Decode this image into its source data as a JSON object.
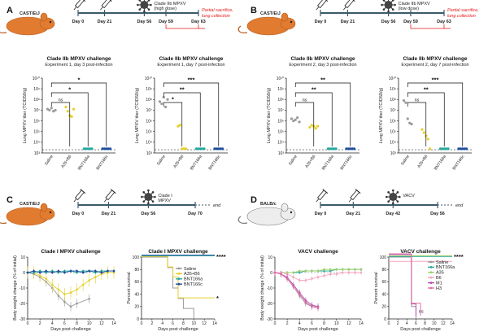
{
  "colors": {
    "Saline": "#9a9a9a",
    "A35+B6": "#e6cf2a",
    "BNT166a": "#25a89c",
    "BNT166c": "#1f4e9c",
    "A35": "#9ed06a",
    "B6": "#f6a6c0",
    "M1": "#b24fb3",
    "H3": "#e06fa2",
    "mouse_orange": "#e07b30",
    "mouse_white": "#ededed",
    "timeline": "#3c5a6b",
    "red": "#e31a1c"
  },
  "panels": [
    {
      "letter": "A",
      "mouse": "CAST/EiJ",
      "mouse_color": "orange",
      "days": [
        "Day 0",
        "Day 21",
        "Day 56",
        "Day 59",
        "Day 63"
      ],
      "challenge_label": [
        "Clade IIb MPXV",
        "(high dose)"
      ],
      "end_label": [
        "Partial sacrifice,",
        "lung collection"
      ],
      "end_is_red": true
    },
    {
      "letter": "B",
      "mouse": "CAST/EiJ",
      "mouse_color": "orange",
      "days": [
        "Day 0",
        "Day 21",
        "Day 56",
        "Day 59",
        "Day 63"
      ],
      "challenge_label": [
        "Clade IIb MPXV",
        "(low dose)"
      ],
      "end_label": [
        "Partial sacrifice,",
        "lung collection"
      ],
      "end_is_red": true
    },
    {
      "letter": "C",
      "mouse": "CAST/EiJ",
      "mouse_color": "orange",
      "days": [
        "Day 0",
        "Day 21",
        "Day 56",
        "Day 70"
      ],
      "challenge_label": [
        "Clade I",
        "MPXV"
      ],
      "end_label": [
        "end"
      ],
      "end_is_red": false
    },
    {
      "letter": "D",
      "mouse": "BALB/c",
      "mouse_color": "white",
      "days": [
        "Day 0",
        "Day 21",
        "Day 42",
        "Day 56"
      ],
      "challenge_label": [
        "VACV"
      ],
      "end_label": [
        "end"
      ],
      "end_is_red": false
    }
  ],
  "chart_data": [
    {
      "id": "A1",
      "type": "scatter",
      "title": "Clade IIb MPXV challenge",
      "subtitle": "Experiment 1, day 3 post-infection",
      "ylabel": "Lung MPXV titer (TCID50/g)",
      "ylim_log10": [
        3,
        10
      ],
      "yticks": [
        "10³",
        "10⁴",
        "10⁵",
        "10⁶",
        "10⁷",
        "10⁸",
        "10⁹",
        "10¹⁰"
      ],
      "categories": [
        "Saline",
        "A35+B6",
        "BNT166a",
        "BNT166c"
      ],
      "lod_log10": 3.3,
      "points_log10": [
        [
          7.1,
          7.0,
          7.2,
          6.9,
          7.0
        ],
        [
          7.3,
          6.9,
          6.5,
          6.4,
          7.1
        ],
        [
          3.3,
          3.3,
          3.3,
          3.3,
          3.3
        ],
        [
          3.3,
          3.3,
          3.3,
          3.3,
          3.3
        ]
      ],
      "brackets": [
        {
          "to": 1,
          "label": "ns"
        },
        {
          "to": 2,
          "label": "*"
        },
        {
          "to": 3,
          "label": "*"
        }
      ]
    },
    {
      "id": "A2",
      "type": "scatter",
      "title": "Clade IIb MPXV challenge",
      "subtitle": "Experiment 1, day 7 post-infection",
      "ylabel": "Lung MPXV titer (TCID50/g)",
      "ylim_log10": [
        3,
        10
      ],
      "yticks": [
        "10³",
        "10⁴",
        "10⁵",
        "10⁶",
        "10⁷",
        "10⁸",
        "10⁹",
        "10¹⁰"
      ],
      "categories": [
        "Saline",
        "A35+B6",
        "BNT166a",
        "BNT166c"
      ],
      "lod_log10": 3.3,
      "points_log10": [
        [
          7.8,
          7.6,
          8.2,
          7.3,
          8.0
        ],
        [
          5.5,
          5.6,
          3.3,
          3.3,
          3.3
        ],
        [
          3.3,
          3.3,
          3.3,
          3.3,
          3.3
        ],
        [
          3.3,
          3.3,
          3.3,
          3.3,
          3.3
        ]
      ],
      "brackets": [
        {
          "to": 1,
          "label": "*"
        },
        {
          "to": 2,
          "label": "**"
        },
        {
          "to": 3,
          "label": "***"
        }
      ]
    },
    {
      "id": "B1",
      "type": "scatter",
      "title": "Clade IIb MPXV challenge",
      "subtitle": "Experiment 2, day 3 post-infection",
      "ylabel": "Lung MPXV titer (TCID50/g)",
      "ylim_log10": [
        3,
        10
      ],
      "yticks": [
        "10³",
        "10⁴",
        "10⁵",
        "10⁶",
        "10⁷",
        "10⁸",
        "10⁹",
        "10¹⁰"
      ],
      "categories": [
        "Saline",
        "A35+B6",
        "BNT166a",
        "BNT166c"
      ],
      "lod_log10": 3.3,
      "points_log10": [
        [
          6.2,
          6.0,
          6.1,
          6.3,
          5.9
        ],
        [
          5.4,
          5.6,
          5.5,
          5.3,
          5.5
        ],
        [
          3.3,
          3.3,
          3.3,
          3.3,
          3.3
        ],
        [
          3.3,
          3.3,
          3.3,
          3.3,
          3.3
        ]
      ],
      "brackets": [
        {
          "to": 1,
          "label": "ns"
        },
        {
          "to": 2,
          "label": "**"
        },
        {
          "to": 3,
          "label": "**"
        }
      ]
    },
    {
      "id": "B2",
      "type": "scatter",
      "title": "Clade IIb MPXV challenge",
      "subtitle": "Experiment 2, day 7 post-infection",
      "ylabel": "Lung MPXV titer (TCID50/g)",
      "ylim_log10": [
        3,
        10
      ],
      "yticks": [
        "10³",
        "10⁴",
        "10⁵",
        "10⁶",
        "10⁷",
        "10⁸",
        "10⁹",
        "10¹⁰"
      ],
      "categories": [
        "Saline",
        "A35+B6",
        "BNT166a",
        "BNT166c"
      ],
      "lod_log10": 3.3,
      "points_log10": [
        [
          7.9,
          7.7,
          6.2,
          5.8,
          5.7
        ],
        [
          5.2,
          4.9,
          4.6,
          4.3,
          3.3
        ],
        [
          3.3,
          3.3,
          3.3,
          3.3,
          3.3
        ],
        [
          3.3,
          3.3,
          3.3,
          3.3,
          3.3
        ]
      ],
      "brackets": [
        {
          "to": 1,
          "label": "ns"
        },
        {
          "to": 2,
          "label": "**"
        },
        {
          "to": 3,
          "label": "***"
        }
      ]
    },
    {
      "id": "C1",
      "type": "line",
      "title": "Clade I MPXV challenge",
      "xlabel": "Days post challenge",
      "ylabel": "Body weight change (% of initial)",
      "xlim": [
        0,
        14
      ],
      "ylim": [
        -30,
        10
      ],
      "xticks": [
        0,
        2,
        4,
        6,
        8,
        10,
        12,
        14
      ],
      "yticks": [
        -30,
        -20,
        -10,
        0,
        10
      ],
      "series": [
        {
          "name": "Saline",
          "x": [
            0,
            1,
            2,
            3,
            4,
            5,
            6,
            7,
            8,
            10
          ],
          "y": [
            0,
            -1,
            -3,
            -6,
            -10,
            -15,
            -19,
            -22,
            -20,
            -17
          ],
          "err": 3
        },
        {
          "name": "A35+B6",
          "x": [
            0,
            1,
            2,
            3,
            4,
            5,
            6,
            7,
            8,
            9,
            10,
            11,
            12,
            13,
            14
          ],
          "y": [
            0,
            0,
            -2,
            -4,
            -8,
            -11,
            -14,
            -13,
            -11,
            -8,
            -5,
            -3,
            -1,
            0,
            0
          ],
          "err": 4
        },
        {
          "name": "BNT166a",
          "x": [
            0,
            1,
            2,
            3,
            4,
            5,
            6,
            7,
            8,
            9,
            10,
            11,
            12,
            13,
            14
          ],
          "y": [
            0,
            0,
            1,
            0,
            1,
            0,
            1,
            1,
            0,
            1,
            1,
            0,
            1,
            1,
            1
          ],
          "err": 1
        },
        {
          "name": "BNT166c",
          "x": [
            0,
            1,
            2,
            3,
            4,
            5,
            6,
            7,
            8,
            9,
            10,
            11,
            12,
            13,
            14
          ],
          "y": [
            0,
            1,
            0,
            1,
            0,
            1,
            0,
            1,
            1,
            0,
            1,
            1,
            0,
            1,
            1
          ],
          "err": 1
        }
      ]
    },
    {
      "id": "C2",
      "type": "line",
      "step": true,
      "title": "Clade I MPXV challenge",
      "xlabel": "Days post challenge",
      "ylabel": "Percent survival",
      "xlim": [
        0,
        14
      ],
      "ylim": [
        0,
        100
      ],
      "xticks": [
        0,
        2,
        4,
        6,
        8,
        10,
        12,
        14
      ],
      "yticks": [
        0,
        20,
        40,
        60,
        80,
        100
      ],
      "series": [
        {
          "name": "Saline",
          "x": [
            0,
            5,
            6,
            7,
            8,
            10
          ],
          "y": [
            100,
            83,
            50,
            33,
            17,
            0
          ]
        },
        {
          "name": "A35+B6",
          "x": [
            0,
            5,
            6,
            7,
            14
          ],
          "y": [
            100,
            83,
            67,
            33,
            33
          ]
        },
        {
          "name": "BNT166a",
          "x": [
            0,
            14
          ],
          "y": [
            100,
            100
          ]
        },
        {
          "name": "BNT166c",
          "x": [
            0,
            14
          ],
          "y": [
            100,
            100
          ]
        }
      ],
      "annotations": [
        "****",
        "*"
      ],
      "legend": [
        "Saline",
        "A35+B6",
        "BNT166a",
        "BNT166c"
      ]
    },
    {
      "id": "D1",
      "type": "line",
      "title": "VACV challenge",
      "xlabel": "Days post challenge",
      "ylabel": "Body weight change (% of initial)",
      "xlim": [
        0,
        14
      ],
      "ylim": [
        -30,
        10
      ],
      "xticks": [
        0,
        2,
        4,
        6,
        8,
        10,
        12,
        14
      ],
      "yticks": [
        -30,
        -20,
        -10,
        0,
        10
      ],
      "series": [
        {
          "name": "Saline",
          "x": [
            0,
            1,
            2,
            3,
            4,
            5,
            6,
            7
          ],
          "y": [
            0,
            -1,
            -4,
            -9,
            -15,
            -20,
            -22,
            -22
          ],
          "err": 2
        },
        {
          "name": "BNT166a",
          "x": [
            0,
            1,
            2,
            3,
            4,
            5,
            6,
            7,
            8,
            9,
            10,
            11,
            12,
            13,
            14
          ],
          "y": [
            0,
            0,
            0,
            0,
            0,
            1,
            1,
            1,
            1,
            1,
            2,
            2,
            2,
            2,
            2
          ],
          "err": 1
        },
        {
          "name": "A35",
          "x": [
            0,
            1,
            2,
            3,
            4,
            5,
            6,
            7,
            8,
            9,
            10,
            11,
            12,
            13,
            14
          ],
          "y": [
            0,
            0,
            0,
            0,
            1,
            1,
            1,
            1,
            2,
            2,
            2,
            2,
            2,
            2,
            2
          ],
          "err": 1
        },
        {
          "name": "B6",
          "x": [
            0,
            1,
            2,
            3,
            4,
            5,
            6,
            7,
            8,
            9,
            10,
            11,
            12,
            13,
            14
          ],
          "y": [
            0,
            0,
            -1,
            -3,
            -5,
            -5,
            -4,
            -3,
            -2,
            -1,
            -1,
            0,
            0,
            0,
            0
          ],
          "err": 1.5
        },
        {
          "name": "M1",
          "x": [
            0,
            1,
            2,
            3,
            4,
            5,
            6,
            7
          ],
          "y": [
            0,
            -1,
            -3,
            -8,
            -13,
            -18,
            -21,
            -22
          ],
          "err": 2
        },
        {
          "name": "H3",
          "x": [
            0,
            1,
            2,
            3,
            4,
            5,
            6,
            7
          ],
          "y": [
            0,
            -1,
            -4,
            -9,
            -14,
            -19,
            -22,
            -23
          ],
          "err": 2
        }
      ]
    },
    {
      "id": "D2",
      "type": "line",
      "step": true,
      "title": "VACV challenge",
      "xlabel": "Days post challenge",
      "ylabel": "Percent survival",
      "xlim": [
        0,
        14
      ],
      "ylim": [
        0,
        100
      ],
      "xticks": [
        0,
        2,
        4,
        6,
        8,
        10,
        12,
        14
      ],
      "yticks": [
        0,
        20,
        40,
        60,
        80,
        100
      ],
      "series": [
        {
          "name": "Saline",
          "x": [
            0,
            5,
            6
          ],
          "y": [
            100,
            20,
            0
          ]
        },
        {
          "name": "BNT166a",
          "x": [
            0,
            14
          ],
          "y": [
            100,
            100
          ]
        },
        {
          "name": "A35",
          "x": [
            0,
            14
          ],
          "y": [
            100,
            100
          ]
        },
        {
          "name": "B6",
          "x": [
            0,
            14
          ],
          "y": [
            90,
            90
          ]
        },
        {
          "name": "M1",
          "x": [
            0,
            5,
            6
          ],
          "y": [
            100,
            20,
            0
          ]
        },
        {
          "name": "H3",
          "x": [
            0,
            5,
            7
          ],
          "y": [
            100,
            20,
            0
          ]
        }
      ],
      "annotations": [
        "****",
        "ns"
      ],
      "legend": [
        "Saline",
        "BNT166a",
        "A35",
        "B6",
        "M1",
        "H3"
      ]
    }
  ]
}
